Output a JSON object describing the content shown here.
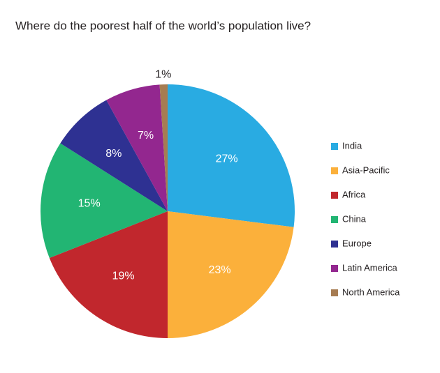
{
  "chart_data": {
    "type": "pie",
    "title": "Where do the poorest half of the world’s population live?",
    "categories": [
      "India",
      "Asia-Pacific",
      "Africa",
      "China",
      "Europe",
      "Latin America",
      "North America"
    ],
    "values": [
      27,
      23,
      19,
      15,
      8,
      7,
      1
    ],
    "value_labels": [
      "27%",
      "23%",
      "19%",
      "15%",
      "8%",
      "7%",
      "1%"
    ],
    "colors": [
      "#29abe2",
      "#fbb03b",
      "#c1272d",
      "#22b573",
      "#2e3192",
      "#93278f",
      "#a67c52"
    ],
    "legend": "right"
  }
}
